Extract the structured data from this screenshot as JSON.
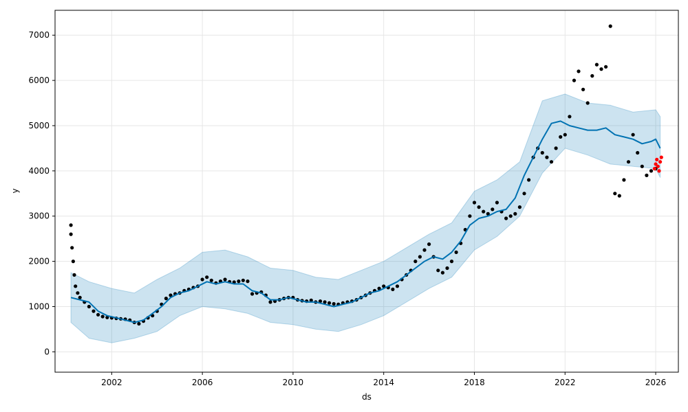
{
  "chart_data": {
    "type": "line",
    "title": "",
    "xlabel": "ds",
    "ylabel": "y",
    "xlim": [
      1999.5,
      2027.0
    ],
    "ylim": [
      -450,
      7550
    ],
    "x_ticks": [
      2002,
      2006,
      2010,
      2014,
      2018,
      2022,
      2026
    ],
    "y_ticks": [
      0,
      1000,
      2000,
      3000,
      4000,
      5000,
      6000,
      7000
    ],
    "grid": true,
    "legend": "none",
    "series": [
      {
        "role": "observed",
        "color": "#000000",
        "points": [
          [
            2000.2,
            2800
          ],
          [
            2000.2,
            2600
          ],
          [
            2000.25,
            2300
          ],
          [
            2000.3,
            2000
          ],
          [
            2000.35,
            1700
          ],
          [
            2000.4,
            1450
          ],
          [
            2000.5,
            1300
          ],
          [
            2000.6,
            1200
          ],
          [
            2000.8,
            1100
          ],
          [
            2001.0,
            1000
          ],
          [
            2001.2,
            900
          ],
          [
            2001.4,
            820
          ],
          [
            2001.6,
            780
          ],
          [
            2001.8,
            760
          ],
          [
            2002.0,
            750
          ],
          [
            2002.2,
            740
          ],
          [
            2002.4,
            730
          ],
          [
            2002.6,
            720
          ],
          [
            2002.8,
            700
          ],
          [
            2003.0,
            650
          ],
          [
            2003.2,
            620
          ],
          [
            2003.4,
            680
          ],
          [
            2003.6,
            750
          ],
          [
            2003.8,
            800
          ],
          [
            2004.0,
            900
          ],
          [
            2004.2,
            1050
          ],
          [
            2004.4,
            1180
          ],
          [
            2004.6,
            1250
          ],
          [
            2004.8,
            1280
          ],
          [
            2005.0,
            1300
          ],
          [
            2005.2,
            1350
          ],
          [
            2005.4,
            1380
          ],
          [
            2005.6,
            1420
          ],
          [
            2005.8,
            1450
          ],
          [
            2006.0,
            1600
          ],
          [
            2006.2,
            1650
          ],
          [
            2006.4,
            1580
          ],
          [
            2006.6,
            1520
          ],
          [
            2006.8,
            1560
          ],
          [
            2007.0,
            1600
          ],
          [
            2007.2,
            1550
          ],
          [
            2007.4,
            1540
          ],
          [
            2007.6,
            1560
          ],
          [
            2007.8,
            1580
          ],
          [
            2008.0,
            1560
          ],
          [
            2008.2,
            1280
          ],
          [
            2008.4,
            1300
          ],
          [
            2008.6,
            1320
          ],
          [
            2008.8,
            1250
          ],
          [
            2009.0,
            1100
          ],
          [
            2009.2,
            1120
          ],
          [
            2009.4,
            1150
          ],
          [
            2009.6,
            1180
          ],
          [
            2009.8,
            1200
          ],
          [
            2010.0,
            1200
          ],
          [
            2010.2,
            1150
          ],
          [
            2010.4,
            1130
          ],
          [
            2010.6,
            1120
          ],
          [
            2010.8,
            1140
          ],
          [
            2011.0,
            1100
          ],
          [
            2011.2,
            1120
          ],
          [
            2011.4,
            1100
          ],
          [
            2011.6,
            1080
          ],
          [
            2011.8,
            1060
          ],
          [
            2012.0,
            1050
          ],
          [
            2012.2,
            1080
          ],
          [
            2012.4,
            1100
          ],
          [
            2012.6,
            1120
          ],
          [
            2012.8,
            1150
          ],
          [
            2013.0,
            1200
          ],
          [
            2013.2,
            1250
          ],
          [
            2013.4,
            1300
          ],
          [
            2013.6,
            1350
          ],
          [
            2013.8,
            1400
          ],
          [
            2014.0,
            1450
          ],
          [
            2014.2,
            1420
          ],
          [
            2014.4,
            1380
          ],
          [
            2014.6,
            1450
          ],
          [
            2014.8,
            1600
          ],
          [
            2015.0,
            1700
          ],
          [
            2015.2,
            1800
          ],
          [
            2015.4,
            2000
          ],
          [
            2015.6,
            2100
          ],
          [
            2015.8,
            2250
          ],
          [
            2016.0,
            2380
          ],
          [
            2016.2,
            2100
          ],
          [
            2016.4,
            1800
          ],
          [
            2016.6,
            1750
          ],
          [
            2016.8,
            1850
          ],
          [
            2017.0,
            2000
          ],
          [
            2017.2,
            2200
          ],
          [
            2017.4,
            2400
          ],
          [
            2017.6,
            2700
          ],
          [
            2017.8,
            3000
          ],
          [
            2018.0,
            3300
          ],
          [
            2018.2,
            3200
          ],
          [
            2018.4,
            3100
          ],
          [
            2018.6,
            3050
          ],
          [
            2018.8,
            3150
          ],
          [
            2019.0,
            3300
          ],
          [
            2019.2,
            3100
          ],
          [
            2019.4,
            2950
          ],
          [
            2019.6,
            3000
          ],
          [
            2019.8,
            3050
          ],
          [
            2020.0,
            3200
          ],
          [
            2020.2,
            3500
          ],
          [
            2020.4,
            3800
          ],
          [
            2020.6,
            4300
          ],
          [
            2020.8,
            4500
          ],
          [
            2021.0,
            4400
          ],
          [
            2021.2,
            4300
          ],
          [
            2021.4,
            4200
          ],
          [
            2021.6,
            4500
          ],
          [
            2021.8,
            4750
          ],
          [
            2022.0,
            4800
          ],
          [
            2022.2,
            5200
          ],
          [
            2022.4,
            6000
          ],
          [
            2022.6,
            6200
          ],
          [
            2022.8,
            5800
          ],
          [
            2023.0,
            5500
          ],
          [
            2023.2,
            6100
          ],
          [
            2023.4,
            6350
          ],
          [
            2023.6,
            6250
          ],
          [
            2023.8,
            6300
          ],
          [
            2024.0,
            7200
          ],
          [
            2024.2,
            3500
          ],
          [
            2024.4,
            3450
          ],
          [
            2024.6,
            3800
          ],
          [
            2024.8,
            4200
          ],
          [
            2025.0,
            4800
          ],
          [
            2025.2,
            4400
          ],
          [
            2025.4,
            4100
          ],
          [
            2025.6,
            3900
          ],
          [
            2025.8,
            4000
          ],
          [
            2026.0,
            4050
          ]
        ]
      },
      {
        "role": "highlighted",
        "color": "#ff0000",
        "points": [
          [
            2025.95,
            4050
          ],
          [
            2026.0,
            4150
          ],
          [
            2026.05,
            4250
          ],
          [
            2026.1,
            4100
          ],
          [
            2026.15,
            4000
          ],
          [
            2026.2,
            4200
          ],
          [
            2026.25,
            4300
          ]
        ]
      },
      {
        "role": "forecast",
        "color": "#0072B2",
        "points": [
          [
            2000.2,
            1200
          ],
          [
            2000.6,
            1150
          ],
          [
            2001.0,
            1100
          ],
          [
            2001.4,
            900
          ],
          [
            2001.8,
            800
          ],
          [
            2002.2,
            750
          ],
          [
            2002.6,
            700
          ],
          [
            2003.0,
            650
          ],
          [
            2003.4,
            700
          ],
          [
            2003.8,
            850
          ],
          [
            2004.2,
            1000
          ],
          [
            2004.6,
            1200
          ],
          [
            2005.0,
            1300
          ],
          [
            2005.4,
            1350
          ],
          [
            2005.8,
            1450
          ],
          [
            2006.2,
            1550
          ],
          [
            2006.6,
            1500
          ],
          [
            2007.0,
            1550
          ],
          [
            2007.4,
            1500
          ],
          [
            2007.8,
            1500
          ],
          [
            2008.2,
            1350
          ],
          [
            2008.6,
            1300
          ],
          [
            2009.0,
            1150
          ],
          [
            2009.4,
            1150
          ],
          [
            2009.8,
            1200
          ],
          [
            2010.2,
            1150
          ],
          [
            2010.6,
            1100
          ],
          [
            2011.0,
            1100
          ],
          [
            2011.4,
            1050
          ],
          [
            2011.8,
            1000
          ],
          [
            2012.2,
            1050
          ],
          [
            2012.6,
            1100
          ],
          [
            2013.0,
            1200
          ],
          [
            2013.4,
            1300
          ],
          [
            2013.8,
            1350
          ],
          [
            2014.2,
            1450
          ],
          [
            2014.6,
            1550
          ],
          [
            2015.0,
            1700
          ],
          [
            2015.4,
            1850
          ],
          [
            2015.8,
            2000
          ],
          [
            2016.2,
            2100
          ],
          [
            2016.6,
            2050
          ],
          [
            2017.0,
            2200
          ],
          [
            2017.4,
            2450
          ],
          [
            2017.8,
            2800
          ],
          [
            2018.2,
            2950
          ],
          [
            2018.6,
            3000
          ],
          [
            2019.0,
            3100
          ],
          [
            2019.4,
            3150
          ],
          [
            2019.8,
            3400
          ],
          [
            2020.2,
            3900
          ],
          [
            2020.6,
            4300
          ],
          [
            2021.0,
            4700
          ],
          [
            2021.4,
            5050
          ],
          [
            2021.8,
            5100
          ],
          [
            2022.2,
            5000
          ],
          [
            2022.6,
            4950
          ],
          [
            2023.0,
            4900
          ],
          [
            2023.4,
            4900
          ],
          [
            2023.8,
            4950
          ],
          [
            2024.2,
            4800
          ],
          [
            2024.6,
            4750
          ],
          [
            2025.0,
            4700
          ],
          [
            2025.4,
            4600
          ],
          [
            2025.8,
            4650
          ],
          [
            2026.0,
            4700
          ],
          [
            2026.2,
            4500
          ]
        ]
      },
      {
        "role": "uncertainty_band",
        "color": "#0072B2",
        "fill_alpha": 0.2,
        "x": [
          2000.2,
          2001.0,
          2002.0,
          2003.0,
          2004.0,
          2005.0,
          2006.0,
          2007.0,
          2008.0,
          2009.0,
          2010.0,
          2011.0,
          2012.0,
          2013.0,
          2014.0,
          2015.0,
          2016.0,
          2017.0,
          2018.0,
          2019.0,
          2020.0,
          2021.0,
          2022.0,
          2023.0,
          2024.0,
          2025.0,
          2026.0,
          2026.2
        ],
        "lower": [
          650,
          300,
          200,
          300,
          450,
          800,
          1000,
          950,
          850,
          650,
          600,
          500,
          450,
          600,
          800,
          1100,
          1400,
          1650,
          2250,
          2550,
          3000,
          3950,
          4500,
          4350,
          4150,
          4100,
          4050,
          3850
        ],
        "upper": [
          1750,
          1550,
          1400,
          1300,
          1600,
          1850,
          2200,
          2250,
          2100,
          1850,
          1800,
          1650,
          1600,
          1800,
          2000,
          2300,
          2600,
          2850,
          3550,
          3800,
          4200,
          5550,
          5700,
          5500,
          5450,
          5300,
          5350,
          5200
        ]
      }
    ]
  }
}
